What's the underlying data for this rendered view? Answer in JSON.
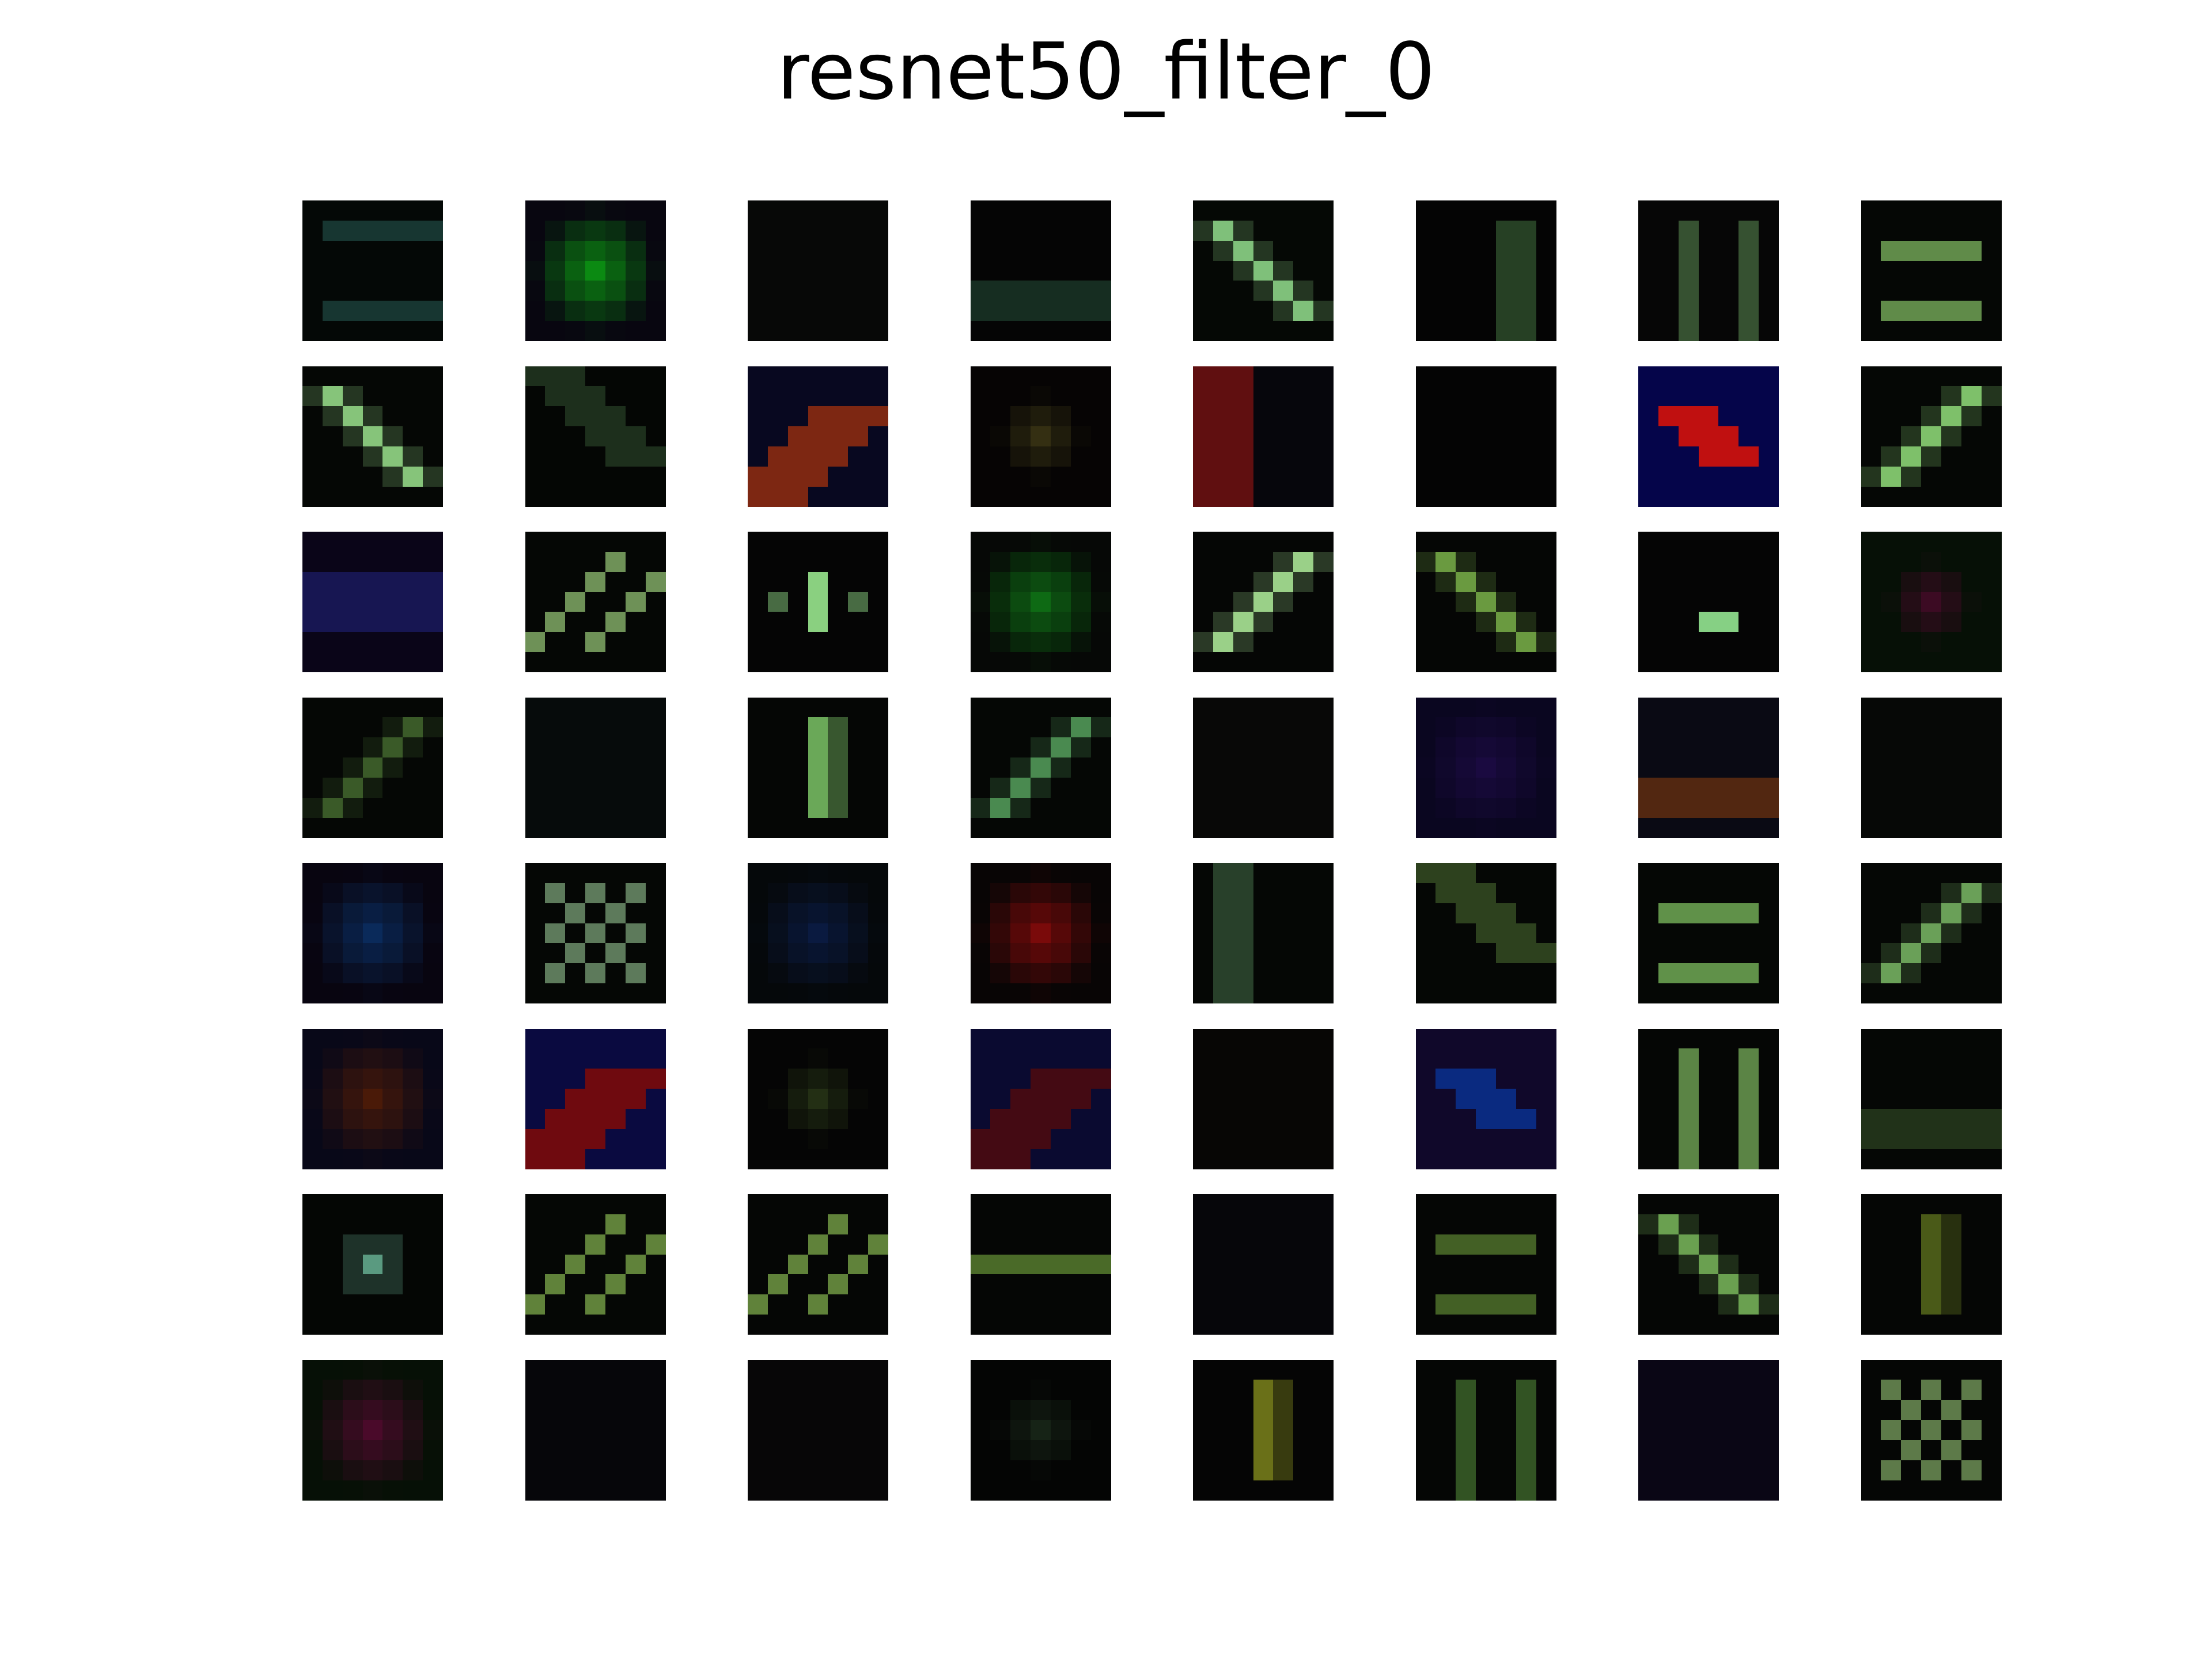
{
  "title": "resnet50_filter_0",
  "grid": {
    "rows": 8,
    "cols": 8,
    "kernel_size": 7,
    "background": "#030503"
  },
  "filters": [
    {
      "base": "#040806",
      "accent": "#1f4a44",
      "pattern": "hbands2"
    },
    {
      "base": "#080610",
      "accent": "#0b8a12",
      "pattern": "blob"
    },
    {
      "base": "#050505",
      "accent": "#101a10",
      "pattern": "dim"
    },
    {
      "base": "#050505",
      "accent": "#1c3a2a",
      "pattern": "hbandlow"
    },
    {
      "base": "#050805",
      "accent": "#7fc07a",
      "pattern": "diag"
    },
    {
      "base": "#040404",
      "accent": "#2c4a2a",
      "pattern": "vbandright"
    },
    {
      "base": "#060606",
      "accent": "#3f5e38",
      "pattern": "vbars"
    },
    {
      "base": "#050705",
      "accent": "#6a9a50",
      "pattern": "hbars"
    },
    {
      "base": "#050705",
      "accent": "#86c47a",
      "pattern": "diag"
    },
    {
      "base": "#040604",
      "accent": "#274126",
      "pattern": "diagband"
    },
    {
      "base": "#080820",
      "accent": "#8a2a10",
      "pattern": "diagcolor"
    },
    {
      "base": "#060404",
      "accent": "#3f3a16",
      "pattern": "blobsmall"
    },
    {
      "base": "#06060c",
      "accent": "#6a1010",
      "pattern": "vcolor"
    },
    {
      "base": "#040404",
      "accent": "#050505",
      "pattern": "dim"
    },
    {
      "base": "#05054a",
      "accent": "#c01010",
      "pattern": "diagcolor2"
    },
    {
      "base": "#050705",
      "accent": "#7ec06a",
      "pattern": "antidiag"
    },
    {
      "base": "#0a0518",
      "accent": "#1a1a60",
      "pattern": "hbandsblue"
    },
    {
      "base": "#050705",
      "accent": "#7aa060",
      "pattern": "diagbars"
    },
    {
      "base": "#050505",
      "accent": "#8ad080",
      "pattern": "vdots"
    },
    {
      "base": "#060806",
      "accent": "#0e6a14",
      "pattern": "blob"
    },
    {
      "base": "#050605",
      "accent": "#9ad088",
      "pattern": "antidiag"
    },
    {
      "base": "#050605",
      "accent": "#6a9a40",
      "pattern": "diag"
    },
    {
      "base": "#050505",
      "accent": "#86d084",
      "pattern": "hdot"
    },
    {
      "base": "#061006",
      "accent": "#4a0a2a",
      "pattern": "blobsmall"
    },
    {
      "base": "#050705",
      "accent": "#3a5a28",
      "pattern": "antidiag"
    },
    {
      "base": "#040707",
      "accent": "#0e2420",
      "pattern": "dim"
    },
    {
      "base": "#050605",
      "accent": "#6aa858",
      "pattern": "vline"
    },
    {
      "base": "#050705",
      "accent": "#4a8a50",
      "pattern": "antidiag"
    },
    {
      "base": "#050505",
      "accent": "#1a1a14",
      "pattern": "dim"
    },
    {
      "base": "#0a0620",
      "accent": "#1a0a40",
      "pattern": "blob"
    },
    {
      "base": "#0a0a14",
      "accent": "#6a3010",
      "pattern": "hbandlow"
    },
    {
      "base": "#050705",
      "accent": "#0a0d0a",
      "pattern": "dim"
    },
    {
      "base": "#080510",
      "accent": "#0a2a5a",
      "pattern": "blob"
    },
    {
      "base": "#050705",
      "accent": "#7aa078",
      "pattern": "checker"
    },
    {
      "base": "#05080a",
      "accent": "#0a1a40",
      "pattern": "blob"
    },
    {
      "base": "#080505",
      "accent": "#7a0a0a",
      "pattern": "blob"
    },
    {
      "base": "#050705",
      "accent": "#2e4a30",
      "pattern": "vbandleft"
    },
    {
      "base": "#050705",
      "accent": "#3e5a28",
      "pattern": "diagband"
    },
    {
      "base": "#050705",
      "accent": "#6aa050",
      "pattern": "hbars"
    },
    {
      "base": "#050705",
      "accent": "#6aa058",
      "pattern": "antidiag"
    },
    {
      "base": "#080818",
      "accent": "#4a1a08",
      "pattern": "blob"
    },
    {
      "base": "#0a0a40",
      "accent": "#7a0a0a",
      "pattern": "diagcolor"
    },
    {
      "base": "#050505",
      "accent": "#2a3a18",
      "pattern": "blobsmall"
    },
    {
      "base": "#0a0a30",
      "accent": "#4a0a10",
      "pattern": "diagcolor"
    },
    {
      "base": "#050505",
      "accent": "#120a05",
      "pattern": "dim"
    },
    {
      "base": "#10082a",
      "accent": "#0a2a80",
      "pattern": "diagcolor2"
    },
    {
      "base": "#050605",
      "accent": "#6a9a50",
      "pattern": "vbars"
    },
    {
      "base": "#050705",
      "accent": "#2a4020",
      "pattern": "hbandlow"
    },
    {
      "base": "#040604",
      "accent": "#5a9a80",
      "pattern": "center"
    },
    {
      "base": "#050705",
      "accent": "#6a9040",
      "pattern": "diagbars"
    },
    {
      "base": "#050605",
      "accent": "#6a9040",
      "pattern": "diagbars"
    },
    {
      "base": "#050605",
      "accent": "#4a6a28",
      "pattern": "hbandmid"
    },
    {
      "base": "#050508",
      "accent": "#0a0a18",
      "pattern": "dim"
    },
    {
      "base": "#050605",
      "accent": "#4a6a28",
      "pattern": "hbars"
    },
    {
      "base": "#050605",
      "accent": "#6aa050",
      "pattern": "diag"
    },
    {
      "base": "#050605",
      "accent": "#4a5a18",
      "pattern": "vline"
    },
    {
      "base": "#061006",
      "accent": "#4a0a2a",
      "pattern": "blob"
    },
    {
      "base": "#050508",
      "accent": "#0a0a14",
      "pattern": "dim"
    },
    {
      "base": "#050505",
      "accent": "#100a14",
      "pattern": "dim"
    },
    {
      "base": "#040504",
      "accent": "#1a2a1a",
      "pattern": "blobsmall"
    },
    {
      "base": "#050505",
      "accent": "#6a7018",
      "pattern": "vline"
    },
    {
      "base": "#050605",
      "accent": "#3a6028",
      "pattern": "vbars"
    },
    {
      "base": "#0a0510",
      "accent": "#0a0a30",
      "pattern": "dim"
    },
    {
      "base": "#050605",
      "accent": "#7aa060",
      "pattern": "checker"
    }
  ]
}
